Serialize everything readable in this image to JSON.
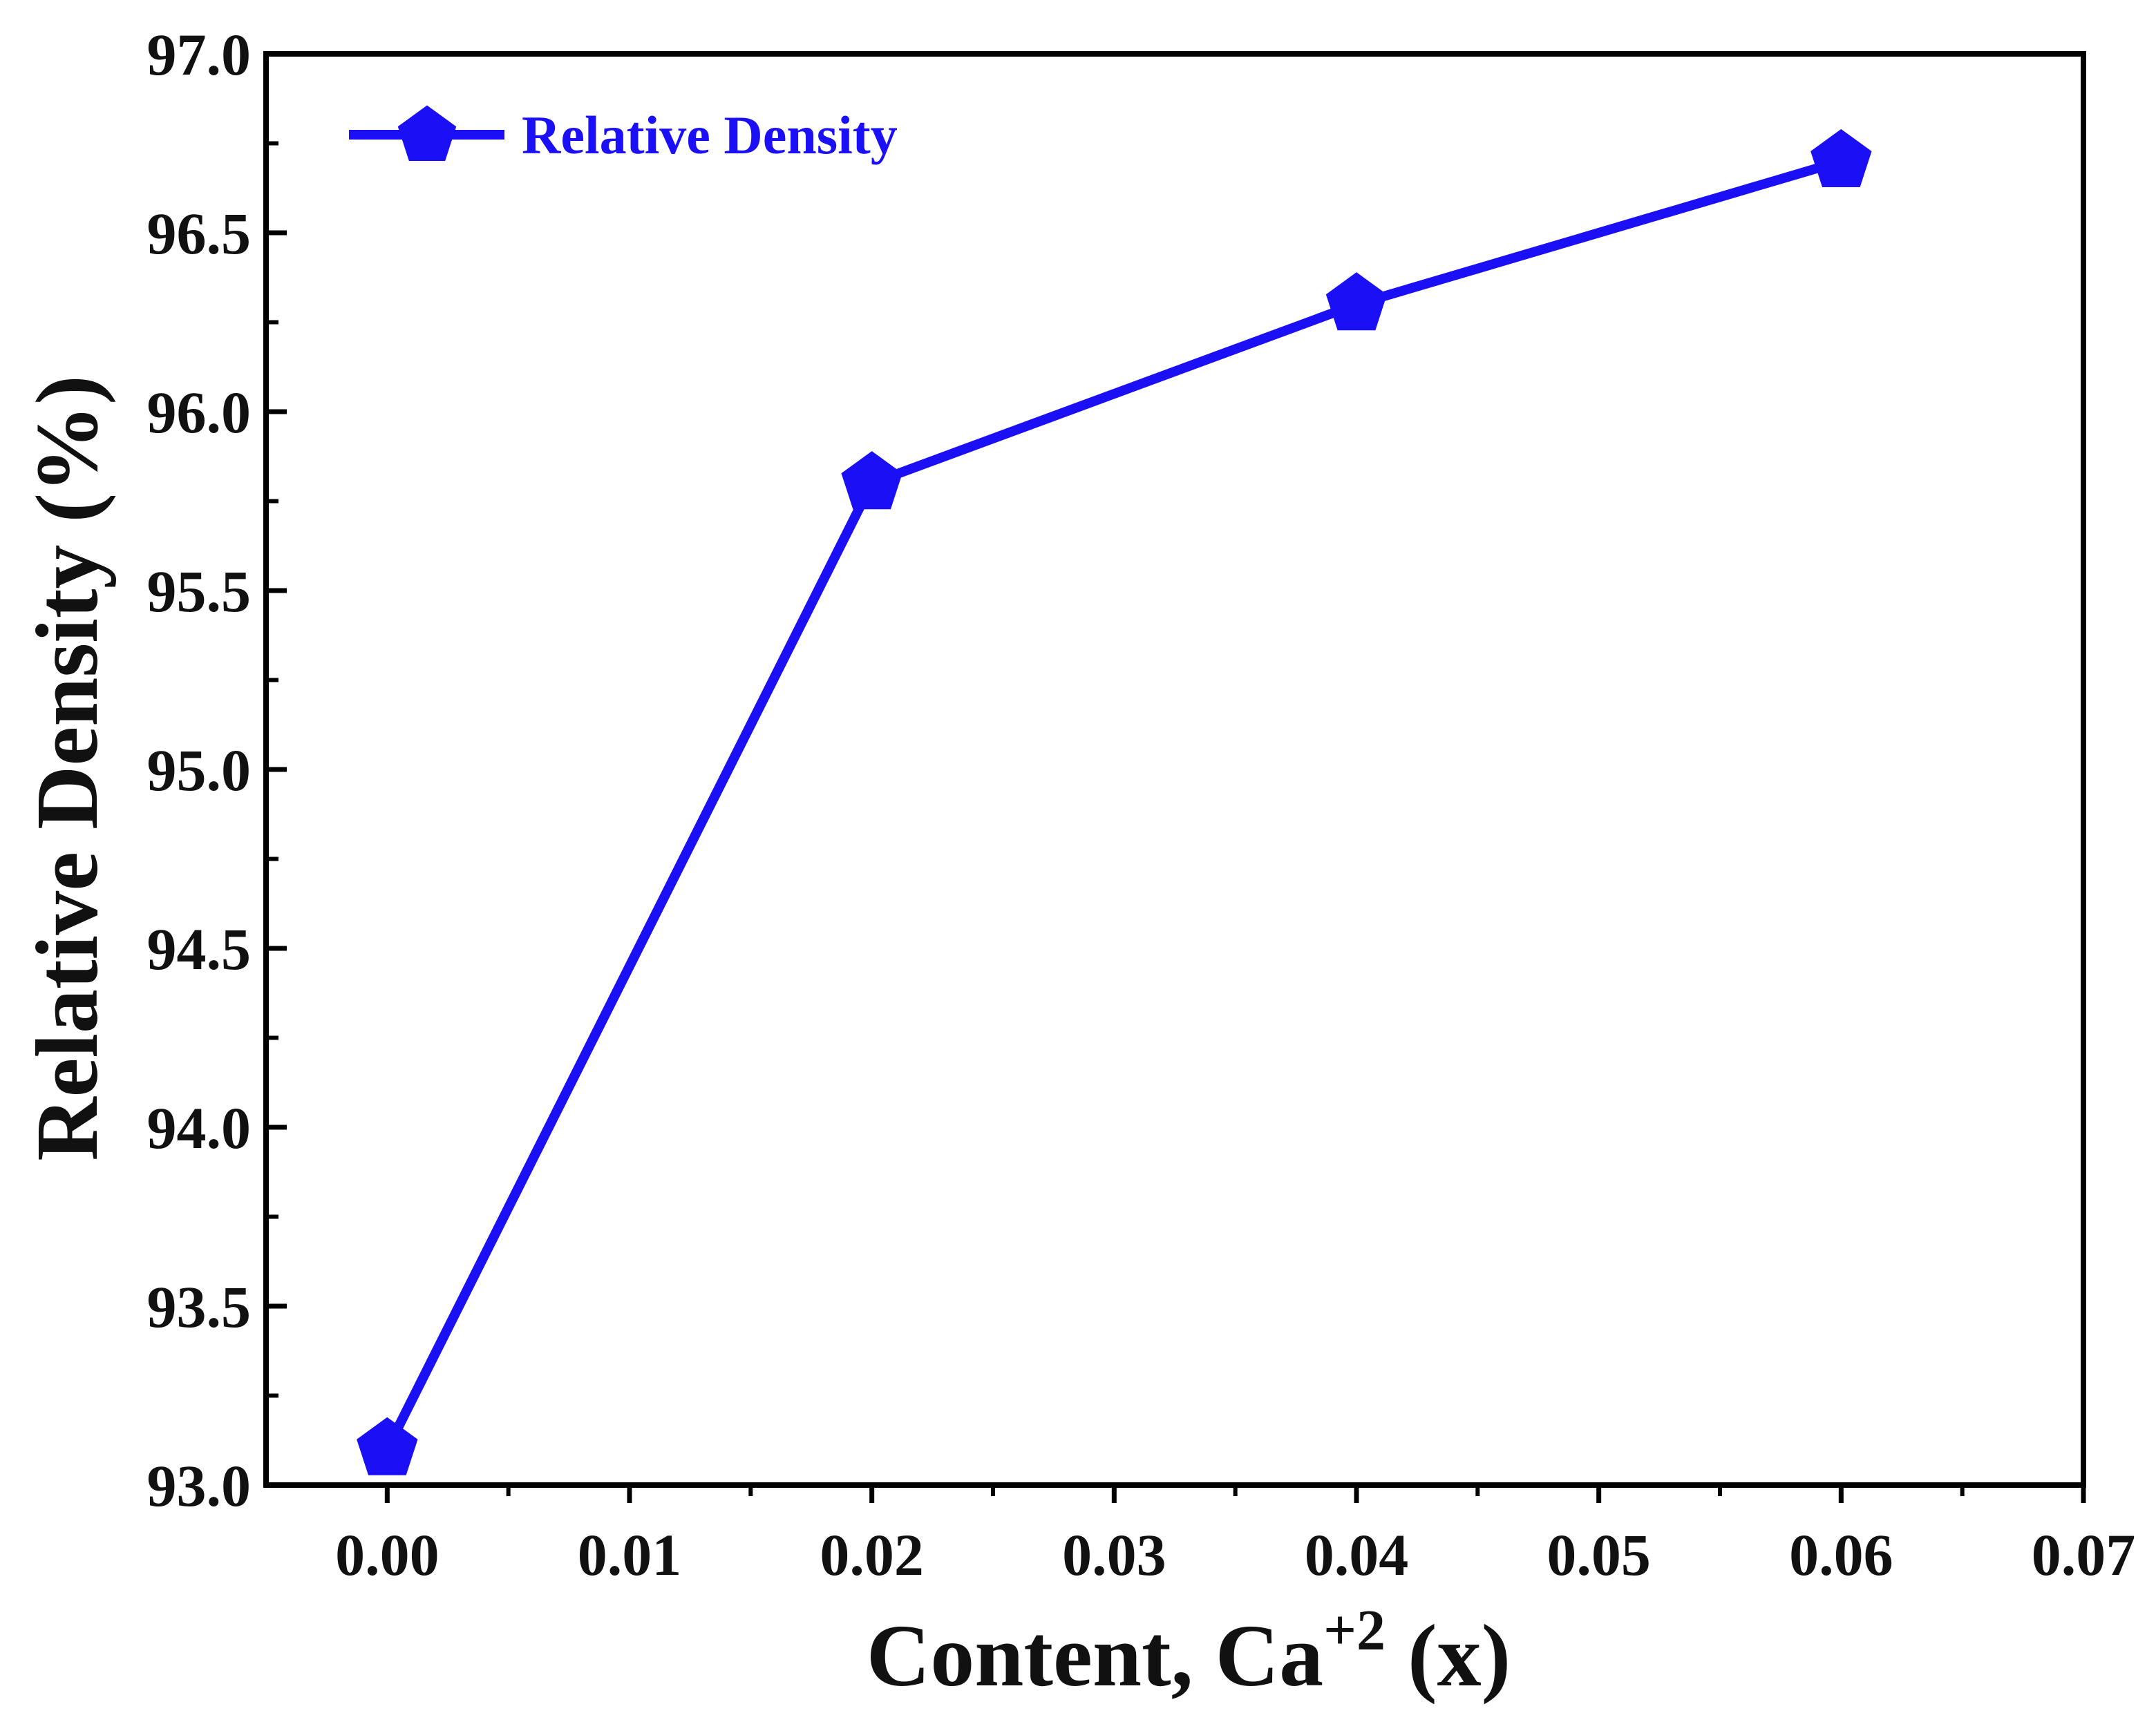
{
  "chart_data": {
    "type": "line",
    "x": [
      0.0,
      0.02,
      0.04,
      0.06
    ],
    "series": [
      {
        "name": "Relative Density",
        "values": [
          93.1,
          95.8,
          96.3,
          96.7
        ],
        "color": "#1a0ff5",
        "marker": "pentagon"
      }
    ],
    "xlabel_main": "Content, Ca",
    "xlabel_sup": "+2",
    "xlabel_suffix": " (x)",
    "ylabel": "Relative Density (%)",
    "xlim": [
      -0.005,
      0.07
    ],
    "ylim": [
      93.0,
      97.0
    ],
    "xticks": [
      "0.00",
      "0.01",
      "0.02",
      "0.03",
      "0.04",
      "0.05",
      "0.06",
      "0.07"
    ],
    "yticks": [
      "93.0",
      "93.5",
      "94.0",
      "94.5",
      "95.0",
      "95.5",
      "96.0",
      "96.5",
      "97.0"
    ],
    "legend": {
      "position": "top-left",
      "label": "Relative Density"
    },
    "grid": false
  }
}
